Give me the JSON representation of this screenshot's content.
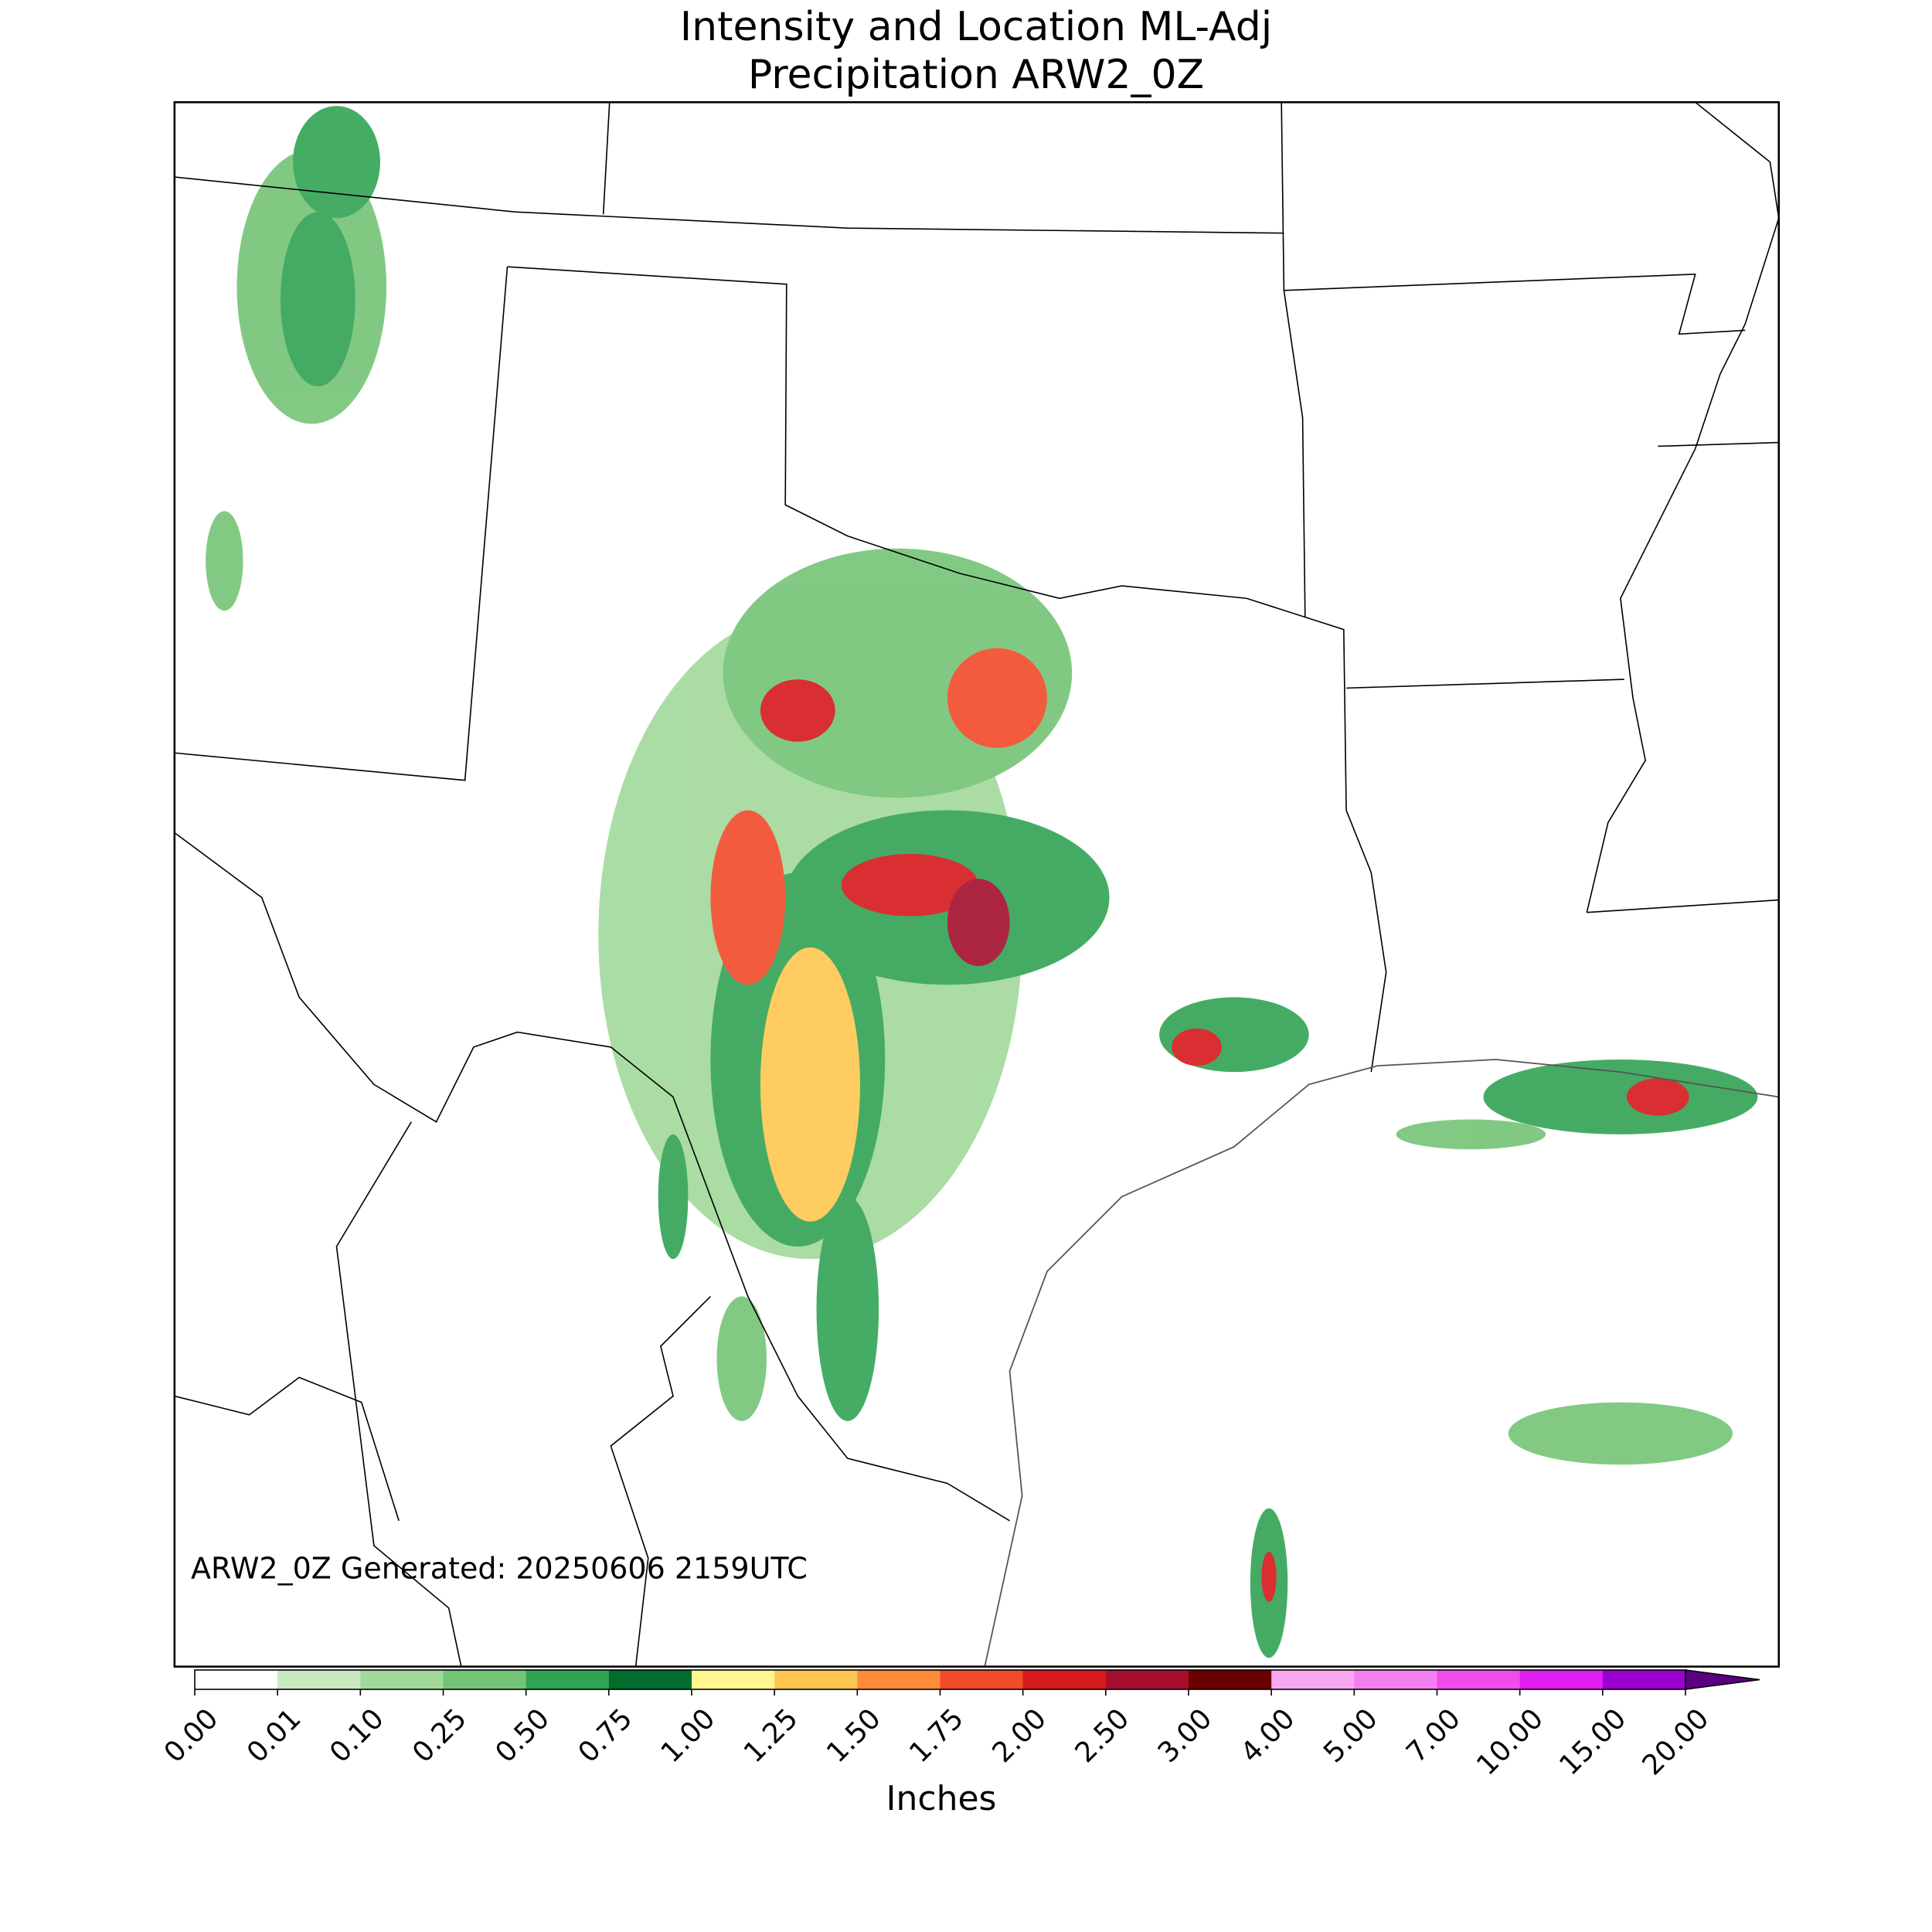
{
  "title": [
    "Intensity and Location ML-Adj",
    "Precipitation ARW2_0Z"
  ],
  "annotation": "ARW2_0Z Generated: 20250606 2159UTC",
  "colorbar": {
    "label": "Inches",
    "ticks": [
      {
        "value": 0,
        "label": "0.00"
      },
      {
        "value": 0.01,
        "label": "0.01"
      },
      {
        "value": 0.1,
        "label": "0.10"
      },
      {
        "value": 0.25,
        "label": "0.25"
      },
      {
        "value": 0.5,
        "label": "0.50"
      },
      {
        "value": 0.75,
        "label": "0.75"
      },
      {
        "value": 1,
        "label": "1.00"
      },
      {
        "value": 1.25,
        "label": "1.25"
      },
      {
        "value": 1.5,
        "label": "1.50"
      },
      {
        "value": 1.75,
        "label": "1.75"
      },
      {
        "value": 2,
        "label": "2.00"
      },
      {
        "value": 2.5,
        "label": "2.50"
      },
      {
        "value": 3,
        "label": "3.00"
      },
      {
        "value": 4,
        "label": "4.00"
      },
      {
        "value": 5,
        "label": "5.00"
      },
      {
        "value": 7,
        "label": "7.00"
      },
      {
        "value": 10,
        "label": "10.00"
      },
      {
        "value": 15,
        "label": "15.00"
      },
      {
        "value": 20,
        "label": "20.00"
      }
    ],
    "colors": [
      "#ffffff",
      "#c7e9c0",
      "#a1d99b",
      "#74c476",
      "#31a354",
      "#006d2c",
      "#fff68f",
      "#ffc751",
      "#ff8c3a",
      "#f24a2a",
      "#d7191c",
      "#a50f2d",
      "#6b0000",
      "#f7a8f0",
      "#f47ff0",
      "#ef4de9",
      "#e01ef0",
      "#9a00d0"
    ],
    "extend_color": "#5a0080"
  }
}
